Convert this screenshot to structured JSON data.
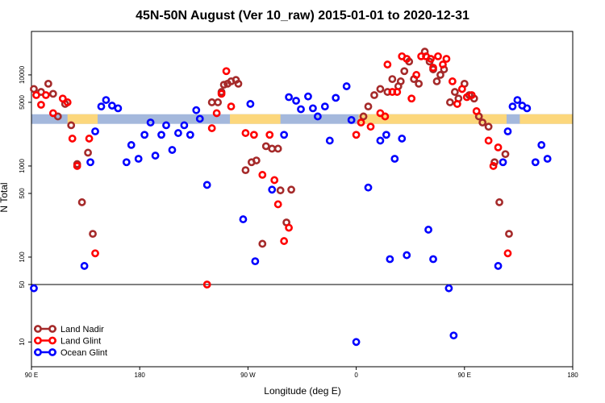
{
  "chart_data": {
    "type": "scatter",
    "title": "45N-50N August (Ver 10_raw)   2015-01-01 to 2020-12-31",
    "xlabel": "Longitude (deg E)",
    "ylabel": "N Total",
    "xscale": "linear, starts at 90E and wraps eastward through 180 and 0 to 180",
    "yscale": "log (upper panel), log (lower panel)",
    "xlim": [
      0,
      450
    ],
    "upper_ylim": [
      50,
      30000
    ],
    "lower_ylim": [
      5,
      50
    ],
    "x_ticks": [
      {
        "pos": 0,
        "label": "90 E"
      },
      {
        "pos": 90,
        "label": "180"
      },
      {
        "pos": 180,
        "label": "90 W"
      },
      {
        "pos": 270,
        "label": "0"
      },
      {
        "pos": 360,
        "label": "90 E"
      },
      {
        "pos": 450,
        "label": "180"
      }
    ],
    "y_ticks_upper": [
      100,
      500,
      1000,
      5000,
      10000
    ],
    "y_ticks_upper_labels": [
      "100",
      "500",
      "1000",
      "5000",
      "10000"
    ],
    "y_ticks_lower": [
      10,
      50
    ],
    "y_ticks_lower_labels": [
      "10",
      "50"
    ],
    "band": {
      "name": "land mask",
      "y_low": 2900,
      "y_high": 3700,
      "ocean_color": "#a4b8dc",
      "land_color": "#fcd77c",
      "land_ranges": [
        [
          30,
          55
        ],
        [
          165,
          207
        ],
        [
          272,
          395
        ],
        [
          406,
          450
        ]
      ]
    },
    "series": [
      {
        "name": "Land Nadir",
        "color": "#a52a2a",
        "points": [
          [
            2,
            7000
          ],
          [
            8,
            6500
          ],
          [
            14,
            8000
          ],
          [
            18,
            6200
          ],
          [
            22,
            3500
          ],
          [
            28,
            4800
          ],
          [
            33,
            2800
          ],
          [
            38,
            1050
          ],
          [
            42,
            400
          ],
          [
            47,
            1400
          ],
          [
            51,
            180
          ],
          [
            150,
            5000
          ],
          [
            155,
            5000
          ],
          [
            158,
            6500
          ],
          [
            160,
            7800
          ],
          [
            163,
            8000
          ],
          [
            166,
            8500
          ],
          [
            170,
            8800
          ],
          [
            172,
            8000
          ],
          [
            178,
            900
          ],
          [
            183,
            1100
          ],
          [
            187,
            1150
          ],
          [
            192,
            140
          ],
          [
            195,
            1650
          ],
          [
            200,
            1550
          ],
          [
            205,
            1550
          ],
          [
            207,
            540
          ],
          [
            212,
            240
          ],
          [
            216,
            550
          ],
          [
            276,
            3500
          ],
          [
            280,
            4500
          ],
          [
            285,
            6000
          ],
          [
            290,
            7000
          ],
          [
            296,
            6500
          ],
          [
            300,
            9000
          ],
          [
            305,
            7500
          ],
          [
            307,
            8500
          ],
          [
            310,
            11000
          ],
          [
            314,
            14000
          ],
          [
            318,
            9000
          ],
          [
            322,
            8000
          ],
          [
            327,
            18000
          ],
          [
            331,
            14000
          ],
          [
            334,
            11500
          ],
          [
            337,
            8500
          ],
          [
            340,
            10000
          ],
          [
            343,
            11500
          ],
          [
            348,
            5000
          ],
          [
            352,
            6500
          ],
          [
            355,
            5500
          ],
          [
            360,
            8000
          ],
          [
            364,
            6000
          ],
          [
            368,
            5500
          ],
          [
            372,
            3500
          ],
          [
            375,
            3000
          ],
          [
            380,
            2700
          ],
          [
            385,
            1100
          ],
          [
            389,
            400
          ],
          [
            394,
            1350
          ],
          [
            397,
            180
          ]
        ]
      },
      {
        "name": "Land Glint",
        "color": "#ff0000",
        "points": [
          [
            4,
            6000
          ],
          [
            8,
            4700
          ],
          [
            12,
            6000
          ],
          [
            18,
            3800
          ],
          [
            26,
            5500
          ],
          [
            30,
            5000
          ],
          [
            34,
            2000
          ],
          [
            38,
            1000
          ],
          [
            48,
            2000
          ],
          [
            53,
            110
          ],
          [
            146,
            50
          ],
          [
            150,
            2600
          ],
          [
            154,
            3800
          ],
          [
            158,
            6200
          ],
          [
            162,
            11000
          ],
          [
            166,
            4500
          ],
          [
            178,
            2300
          ],
          [
            185,
            2200
          ],
          [
            192,
            800
          ],
          [
            198,
            2200
          ],
          [
            202,
            700
          ],
          [
            205,
            380
          ],
          [
            210,
            150
          ],
          [
            214,
            210
          ],
          [
            270,
            2200
          ],
          [
            274,
            3000
          ],
          [
            282,
            2700
          ],
          [
            290,
            3800
          ],
          [
            294,
            3500
          ],
          [
            296,
            13000
          ],
          [
            300,
            6500
          ],
          [
            304,
            6500
          ],
          [
            308,
            16000
          ],
          [
            312,
            15000
          ],
          [
            316,
            5500
          ],
          [
            320,
            10000
          ],
          [
            324,
            16000
          ],
          [
            328,
            16000
          ],
          [
            332,
            15000
          ],
          [
            334,
            12000
          ],
          [
            338,
            16000
          ],
          [
            342,
            13000
          ],
          [
            345,
            15000
          ],
          [
            350,
            8500
          ],
          [
            354,
            4800
          ],
          [
            358,
            7000
          ],
          [
            362,
            5700
          ],
          [
            366,
            6000
          ],
          [
            370,
            4000
          ],
          [
            380,
            1900
          ],
          [
            384,
            1000
          ],
          [
            388,
            1600
          ],
          [
            396,
            110
          ]
        ]
      },
      {
        "name": "Ocean Glint",
        "color": "#0000ff",
        "points": [
          [
            2,
            45
          ],
          [
            44,
            80
          ],
          [
            49,
            1100
          ],
          [
            53,
            2400
          ],
          [
            58,
            4500
          ],
          [
            62,
            5300
          ],
          [
            67,
            4600
          ],
          [
            72,
            4300
          ],
          [
            79,
            1100
          ],
          [
            83,
            1700
          ],
          [
            89,
            1200
          ],
          [
            94,
            2200
          ],
          [
            99,
            3000
          ],
          [
            103,
            1300
          ],
          [
            108,
            2200
          ],
          [
            112,
            2800
          ],
          [
            117,
            1500
          ],
          [
            122,
            2300
          ],
          [
            127,
            2800
          ],
          [
            132,
            2200
          ],
          [
            137,
            4100
          ],
          [
            140,
            3300
          ],
          [
            146,
            620
          ],
          [
            176,
            260
          ],
          [
            182,
            4800
          ],
          [
            186,
            90
          ],
          [
            200,
            550
          ],
          [
            210,
            2200
          ],
          [
            214,
            5700
          ],
          [
            220,
            5200
          ],
          [
            224,
            4200
          ],
          [
            230,
            5800
          ],
          [
            234,
            4300
          ],
          [
            238,
            3500
          ],
          [
            244,
            4500
          ],
          [
            248,
            1900
          ],
          [
            253,
            5600
          ],
          [
            262,
            7500
          ],
          [
            266,
            3200
          ],
          [
            270,
            10
          ],
          [
            280,
            580
          ],
          [
            290,
            1900
          ],
          [
            295,
            2200
          ],
          [
            298,
            95
          ],
          [
            302,
            1200
          ],
          [
            308,
            2000
          ],
          [
            312,
            105
          ],
          [
            330,
            200
          ],
          [
            334,
            95
          ],
          [
            347,
            45
          ],
          [
            351,
            12
          ],
          [
            388,
            80
          ],
          [
            392,
            1100
          ],
          [
            396,
            2400
          ],
          [
            400,
            4500
          ],
          [
            404,
            5300
          ],
          [
            408,
            4600
          ],
          [
            412,
            4300
          ],
          [
            419,
            1100
          ],
          [
            424,
            1700
          ],
          [
            429,
            1200
          ]
        ]
      }
    ],
    "legend": {
      "position": "bottom-left",
      "entries": [
        "Land Nadir",
        "Land Glint",
        "Ocean Glint"
      ]
    }
  }
}
